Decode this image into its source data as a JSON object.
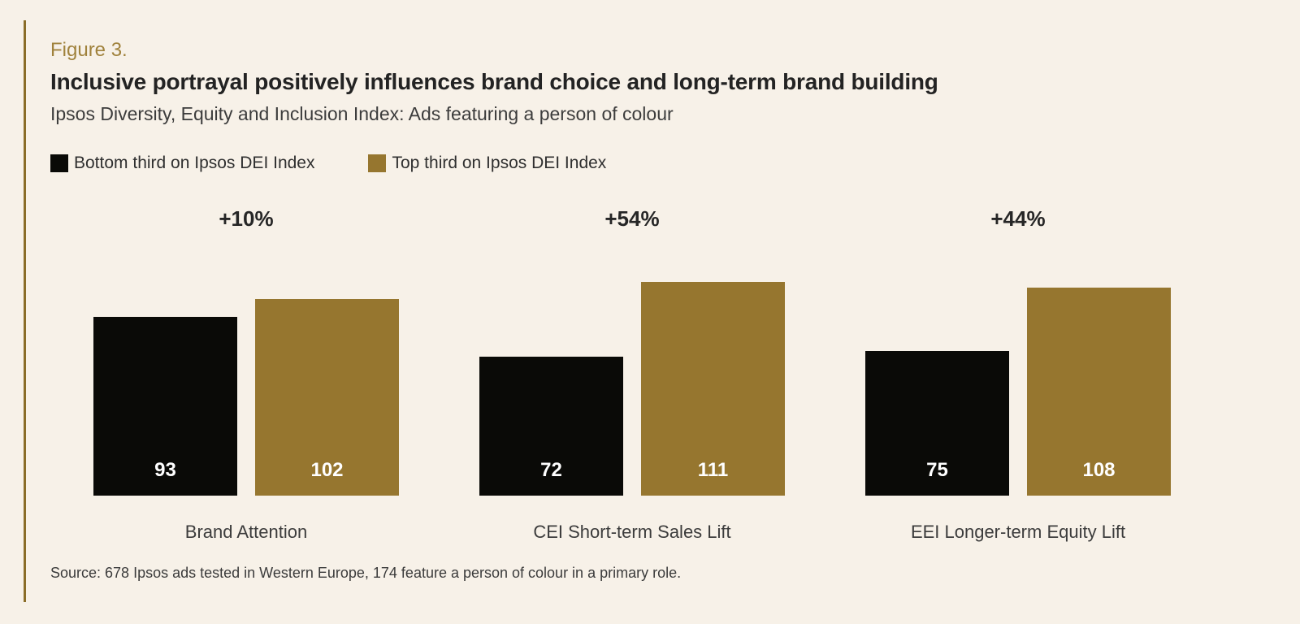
{
  "header": {
    "figure_label": "Figure 3.",
    "title": "Inclusive portrayal positively influences brand choice and long-term brand building",
    "subtitle": "Ipsos Diversity, Equity and Inclusion Index: Ads featuring a person of colour"
  },
  "legend": {
    "items": [
      {
        "label": "Bottom third on Ipsos DEI Index",
        "color": "#0a0a07"
      },
      {
        "label": "Top third on Ipsos DEI Index",
        "color": "#96762f"
      }
    ]
  },
  "chart_data": {
    "type": "bar",
    "title": "Inclusive portrayal positively influences brand choice and long-term brand building",
    "subtitle": "Ipsos Diversity, Equity and Inclusion Index: Ads featuring a person of colour",
    "categories": [
      "Brand Attention",
      "CEI Short-term Sales Lift",
      "EEI Longer-term Equity Lift"
    ],
    "series": [
      {
        "name": "Bottom third on Ipsos DEI Index",
        "color": "#0a0a07",
        "values": [
          93,
          72,
          75
        ]
      },
      {
        "name": "Top third on Ipsos DEI Index",
        "color": "#96762f",
        "values": [
          102,
          111,
          108
        ]
      }
    ],
    "group_delta_labels": [
      "+10%",
      "+54%",
      "+44%"
    ],
    "ylim": [
      0,
      135
    ],
    "grid": false,
    "axes_visible": false,
    "legend_position": "top-left",
    "value_labels": "inside-bottom-white"
  },
  "source": "Source: 678 Ipsos ads tested in Western Europe, 174 feature a person of colour in a primary role.",
  "colors": {
    "background": "#f7f1e8",
    "accent_rule": "#8a6d28",
    "figure_label": "#a0823c",
    "title": "#232323",
    "text": "#3c3c3c",
    "bar_black": "#0a0a07",
    "bar_gold": "#96762f",
    "value_text": "#ffffff"
  }
}
